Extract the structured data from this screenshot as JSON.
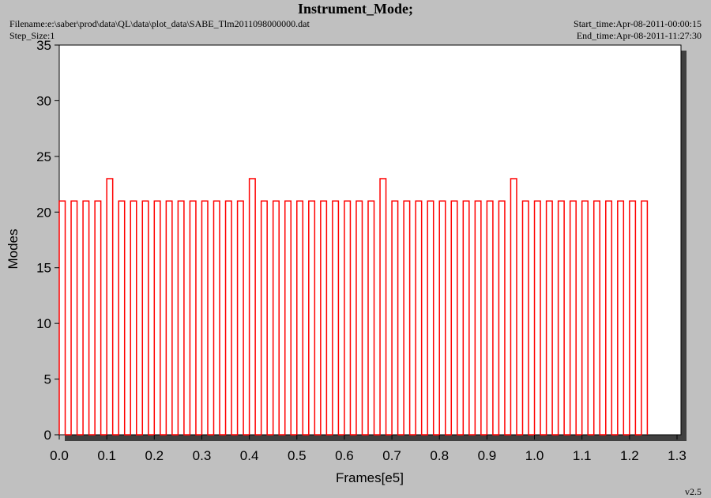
{
  "chart_data": {
    "type": "line",
    "title": "Instrument_Mode;",
    "filename": "Filename:e:\\saber\\prod\\data\\QL\\data\\plot_data\\SABE_Tlm2011098000000.dat",
    "step_size": "Step_Size:1",
    "start_time": "Start_time:Apr-08-2011-00:00:15",
    "end_time": "End_time:Apr-08-2011-11:27:30",
    "version": "v2.5",
    "xlabel": "Frames[e5]",
    "ylabel": "Modes",
    "color": "#ff0000",
    "xlim": [
      0,
      1.3
    ],
    "ylim": [
      0,
      35
    ],
    "xticks": [
      {
        "value": 0,
        "label": "0.0"
      },
      0.1,
      0.2,
      0.3,
      0.4,
      0.5,
      0.6,
      0.7,
      0.8,
      0.9,
      {
        "value": 1,
        "label": "1.0"
      },
      1.1,
      1.2,
      1.3
    ],
    "yticks": [
      0,
      5,
      10,
      15,
      20,
      25,
      30,
      35
    ],
    "x": [
      0,
      0,
      0.0125,
      0.0125,
      0.025,
      0.025,
      0.0375,
      0.0375,
      0.05,
      0.05,
      0.0625,
      0.0625,
      0.075,
      0.075,
      0.0875,
      0.0875,
      0.1,
      0.1,
      0.1125,
      0.1125,
      0.125,
      0.125,
      0.1375,
      0.1375,
      0.15,
      0.15,
      0.1625,
      0.1625,
      0.175,
      0.175,
      0.1875,
      0.1875,
      0.2,
      0.2,
      0.2125,
      0.2125,
      0.225,
      0.225,
      0.2375,
      0.2375,
      0.25,
      0.25,
      0.2625,
      0.2625,
      0.275,
      0.275,
      0.2875,
      0.2875,
      0.3,
      0.3,
      0.3125,
      0.3125,
      0.325,
      0.325,
      0.3375,
      0.3375,
      0.35,
      0.35,
      0.3625,
      0.3625,
      0.375,
      0.375,
      0.3875,
      0.3875,
      0.4,
      0.4,
      0.4125,
      0.4125,
      0.425,
      0.425,
      0.4375,
      0.4375,
      0.45,
      0.45,
      0.4625,
      0.4625,
      0.475,
      0.475,
      0.4875,
      0.4875,
      0.5,
      0.5,
      0.5125,
      0.5125,
      0.525,
      0.525,
      0.5375,
      0.5375,
      0.55,
      0.55,
      0.5625,
      0.5625,
      0.575,
      0.575,
      0.5875,
      0.5875,
      0.6,
      0.6,
      0.6125,
      0.6125,
      0.625,
      0.625,
      0.6375,
      0.6375,
      0.65,
      0.65,
      0.6625,
      0.6625,
      0.675,
      0.675,
      0.6875,
      0.6875,
      0.7,
      0.7,
      0.7125,
      0.7125,
      0.725,
      0.725,
      0.7375,
      0.7375,
      0.75,
      0.75,
      0.7625,
      0.7625,
      0.775,
      0.775,
      0.7875,
      0.7875,
      0.8,
      0.8,
      0.8125,
      0.8125,
      0.825,
      0.825,
      0.8375,
      0.8375,
      0.85,
      0.85,
      0.8625,
      0.8625,
      0.875,
      0.875,
      0.8875,
      0.8875,
      0.9,
      0.9,
      0.9125,
      0.9125,
      0.925,
      0.925,
      0.9375,
      0.9375,
      0.95,
      0.95,
      0.9625,
      0.9625,
      0.975,
      0.975,
      0.9875,
      0.9875,
      1.0,
      1.0,
      1.0125,
      1.0125,
      1.025,
      1.025,
      1.0375,
      1.0375,
      1.05,
      1.05,
      1.0625,
      1.0625,
      1.075,
      1.075,
      1.0875,
      1.0875,
      1.1,
      1.1,
      1.1125,
      1.1125,
      1.125,
      1.125,
      1.1375,
      1.1375,
      1.15,
      1.15,
      1.1625,
      1.1625,
      1.175,
      1.175,
      1.1875,
      1.1875,
      1.2,
      1.2,
      1.2125,
      1.2125,
      1.225,
      1.225,
      1.2375,
      1.2375
    ],
    "values": [
      0,
      21,
      21,
      0,
      0,
      21,
      21,
      0,
      0,
      21,
      21,
      0,
      0,
      21,
      21,
      0,
      0,
      23,
      23,
      0,
      0,
      21,
      21,
      0,
      0,
      21,
      21,
      0,
      0,
      21,
      21,
      0,
      0,
      21,
      21,
      0,
      0,
      21,
      21,
      0,
      0,
      21,
      21,
      0,
      0,
      21,
      21,
      0,
      0,
      21,
      21,
      0,
      0,
      21,
      21,
      0,
      0,
      21,
      21,
      0,
      0,
      21,
      21,
      0,
      0,
      23,
      23,
      0,
      0,
      21,
      21,
      0,
      0,
      21,
      21,
      0,
      0,
      21,
      21,
      0,
      0,
      21,
      21,
      0,
      0,
      21,
      21,
      0,
      0,
      21,
      21,
      0,
      0,
      21,
      21,
      0,
      0,
      21,
      21,
      0,
      0,
      21,
      21,
      0,
      0,
      21,
      21,
      0,
      0,
      23,
      23,
      0,
      0,
      21,
      21,
      0,
      0,
      21,
      21,
      0,
      0,
      21,
      21,
      0,
      0,
      21,
      21,
      0,
      0,
      21,
      21,
      0,
      0,
      21,
      21,
      0,
      0,
      21,
      21,
      0,
      0,
      21,
      21,
      0,
      0,
      21,
      21,
      0,
      0,
      21,
      21,
      0,
      0,
      23,
      23,
      0,
      0,
      21,
      21,
      0,
      0,
      21,
      21,
      0,
      0,
      21,
      21,
      0,
      0,
      21,
      21,
      0,
      0,
      21,
      21,
      0,
      0,
      21,
      21,
      0,
      0,
      21,
      21,
      0,
      0,
      21,
      21,
      0,
      0,
      21,
      21,
      0,
      0,
      21,
      21,
      0,
      0,
      21,
      21,
      0
    ]
  }
}
